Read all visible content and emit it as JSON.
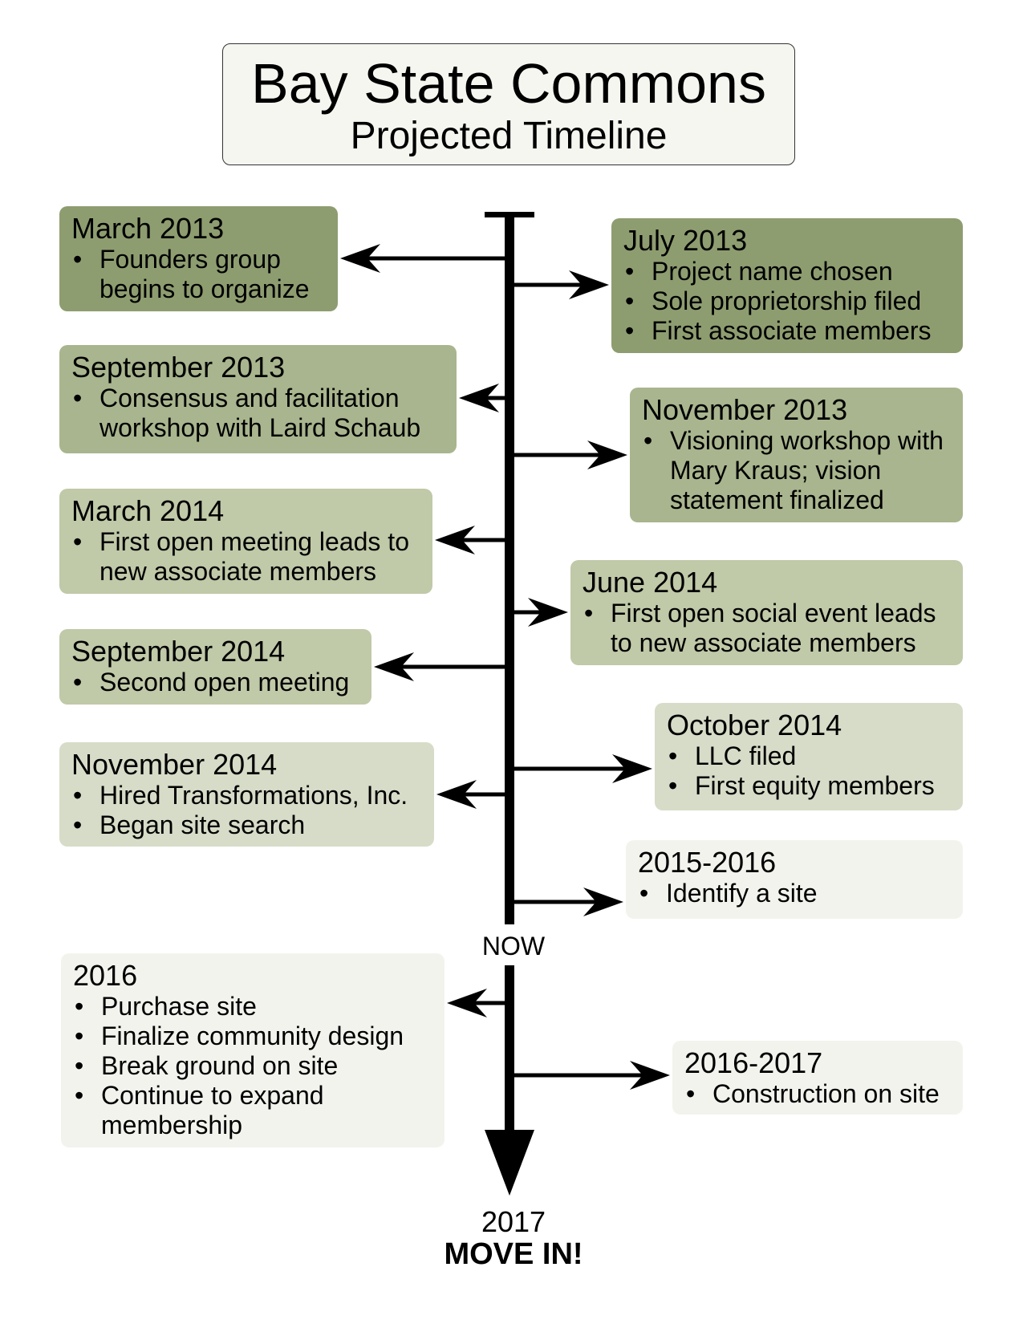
{
  "title": "Bay State Commons",
  "subtitle": "Projected Timeline",
  "now_label": "NOW",
  "end_year": "2017",
  "end_text": "MOVE IN!",
  "colors": {
    "dark": "#8e9d70",
    "medium": "#a9b58e",
    "light": "#c0c9a8",
    "pale": "#d7dcc8",
    "faint": "#f3f3ee",
    "line": "#000000",
    "title_bg": "#f6f6f1"
  },
  "events": [
    {
      "date": "March 2013",
      "items": [
        "Founders group begins to organize"
      ],
      "side": "left",
      "shade": "dark"
    },
    {
      "date": "July 2013",
      "items": [
        "Project name chosen",
        "Sole proprietorship filed",
        "First associate members"
      ],
      "side": "right",
      "shade": "dark"
    },
    {
      "date": "September 2013",
      "items": [
        "Consensus and facilitation workshop with Laird Schaub"
      ],
      "side": "left",
      "shade": "medium"
    },
    {
      "date": "November 2013",
      "items": [
        "Visioning workshop with Mary Kraus; vision statement finalized"
      ],
      "side": "right",
      "shade": "medium"
    },
    {
      "date": "March 2014",
      "items": [
        "First open meeting leads to new associate members"
      ],
      "side": "left",
      "shade": "light"
    },
    {
      "date": "June 2014",
      "items": [
        "First open social event leads to new associate members"
      ],
      "side": "right",
      "shade": "light"
    },
    {
      "date": "September 2014",
      "items": [
        "Second open meeting"
      ],
      "side": "left",
      "shade": "light"
    },
    {
      "date": "October 2014",
      "items": [
        "LLC filed",
        "First equity members"
      ],
      "side": "right",
      "shade": "pale"
    },
    {
      "date": "November 2014",
      "items": [
        "Hired Transformations, Inc.",
        "Began site search"
      ],
      "side": "left",
      "shade": "pale"
    },
    {
      "date": "2015-2016",
      "items": [
        "Identify a site"
      ],
      "side": "right",
      "shade": "faint"
    },
    {
      "date": "2016",
      "items": [
        "Purchase site",
        "Finalize community design",
        "Break ground on site",
        "Continue to expand membership"
      ],
      "side": "left",
      "shade": "faint"
    },
    {
      "date": "2016-2017",
      "items": [
        "Construction on site"
      ],
      "side": "right",
      "shade": "faint"
    }
  ]
}
